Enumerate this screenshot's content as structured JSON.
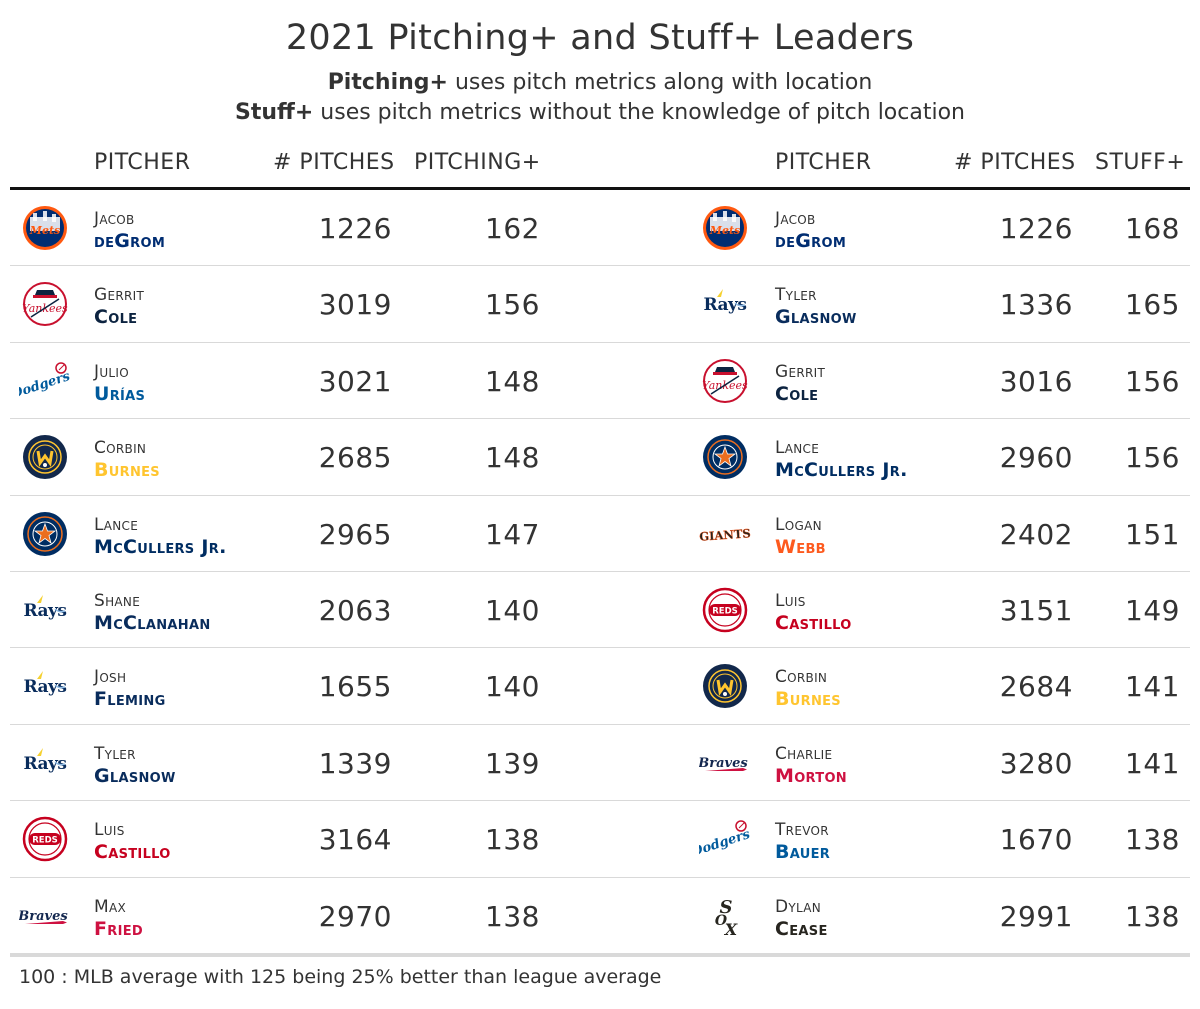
{
  "title": "2021 Pitching+ and Stuff+ Leaders",
  "subtitle1": {
    "bold": "Pitching+",
    "rest": " uses pitch metrics along with location"
  },
  "subtitle2": {
    "bold": "Stuff+",
    "rest": " uses pitch metrics without the knowledge of pitch location"
  },
  "headers": {
    "left_pitcher": "PITCHER",
    "left_pitches": "# PITCHES",
    "left_metric": "PITCHING+",
    "right_pitcher": "PITCHER",
    "right_pitches": "# PITCHES",
    "right_metric": "STUFF+"
  },
  "colors": {
    "mets": "#002D72",
    "yankees": "#0C2340",
    "dodgers": "#005A9C",
    "brewers": "#FFC52F",
    "astros": "#002D62",
    "rays": "#092C5C",
    "reds": "#C6011F",
    "braves": "#CE1141",
    "giants": "#FD5A1E",
    "whitesox": "#27251F"
  },
  "pitching_leaders": [
    {
      "first": "Jacob",
      "last": "deGrom",
      "team": "mets",
      "logo_icon": "mets-logo-icon",
      "pitches": "1226",
      "value": "162"
    },
    {
      "first": "Gerrit",
      "last": "Cole",
      "team": "yankees",
      "logo_icon": "yankees-logo-icon",
      "pitches": "3019",
      "value": "156"
    },
    {
      "first": "Julio",
      "last": "Urías",
      "team": "dodgers",
      "logo_icon": "dodgers-logo-icon",
      "pitches": "3021",
      "value": "148"
    },
    {
      "first": "Corbin",
      "last": "Burnes",
      "team": "brewers",
      "logo_icon": "brewers-logo-icon",
      "pitches": "2685",
      "value": "148"
    },
    {
      "first": "Lance",
      "last": "McCullers Jr.",
      "team": "astros",
      "logo_icon": "astros-logo-icon",
      "pitches": "2965",
      "value": "147"
    },
    {
      "first": "Shane",
      "last": "McClanahan",
      "team": "rays",
      "logo_icon": "rays-logo-icon",
      "pitches": "2063",
      "value": "140"
    },
    {
      "first": "Josh",
      "last": "Fleming",
      "team": "rays",
      "logo_icon": "rays-logo-icon",
      "pitches": "1655",
      "value": "140"
    },
    {
      "first": "Tyler",
      "last": "Glasnow",
      "team": "rays",
      "logo_icon": "rays-logo-icon",
      "pitches": "1339",
      "value": "139"
    },
    {
      "first": "Luis",
      "last": "Castillo",
      "team": "reds",
      "logo_icon": "reds-logo-icon",
      "pitches": "3164",
      "value": "138"
    },
    {
      "first": "Max",
      "last": "Fried",
      "team": "braves",
      "logo_icon": "braves-logo-icon",
      "pitches": "2970",
      "value": "138"
    }
  ],
  "stuff_leaders": [
    {
      "first": "Jacob",
      "last": "deGrom",
      "team": "mets",
      "logo_icon": "mets-logo-icon",
      "pitches": "1226",
      "value": "168"
    },
    {
      "first": "Tyler",
      "last": "Glasnow",
      "team": "rays",
      "logo_icon": "rays-logo-icon",
      "pitches": "1336",
      "value": "165"
    },
    {
      "first": "Gerrit",
      "last": "Cole",
      "team": "yankees",
      "logo_icon": "yankees-logo-icon",
      "pitches": "3016",
      "value": "156"
    },
    {
      "first": "Lance",
      "last": "McCullers Jr.",
      "team": "astros",
      "logo_icon": "astros-logo-icon",
      "pitches": "2960",
      "value": "156"
    },
    {
      "first": "Logan",
      "last": "Webb",
      "team": "giants",
      "logo_icon": "giants-logo-icon",
      "pitches": "2402",
      "value": "151"
    },
    {
      "first": "Luis",
      "last": "Castillo",
      "team": "reds",
      "logo_icon": "reds-logo-icon",
      "pitches": "3151",
      "value": "149"
    },
    {
      "first": "Corbin",
      "last": "Burnes",
      "team": "brewers",
      "logo_icon": "brewers-logo-icon",
      "pitches": "2684",
      "value": "141"
    },
    {
      "first": "Charlie",
      "last": "Morton",
      "team": "braves",
      "logo_icon": "braves-logo-icon",
      "pitches": "3280",
      "value": "141"
    },
    {
      "first": "Trevor",
      "last": "Bauer",
      "team": "dodgers",
      "logo_icon": "dodgers-logo-icon",
      "pitches": "1670",
      "value": "138"
    },
    {
      "first": "Dylan",
      "last": "Cease",
      "team": "whitesox",
      "logo_icon": "whitesox-logo-icon",
      "pitches": "2991",
      "value": "138"
    }
  ],
  "footer": "100 : MLB average with 125 being 25% better than league average"
}
